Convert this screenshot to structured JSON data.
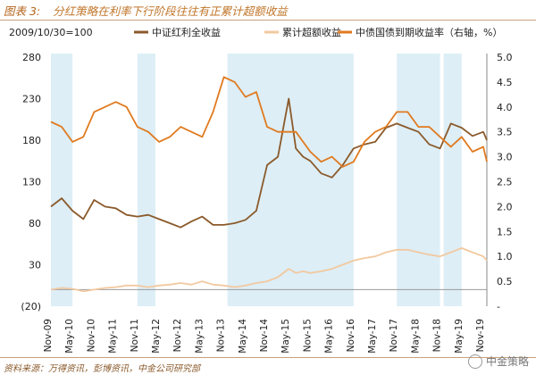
{
  "figure": {
    "label": "图表 3:",
    "title": "分红策略在利率下行阶段往往有正累计超额收益"
  },
  "source": "资料来源：万得资讯，彭博资讯，中金公司研究部",
  "watermark": "中金策略",
  "colors": {
    "dividend": "#8B5A2B",
    "excess": "#F2C9A0",
    "yield": "#E07A1F",
    "shade": "#DDEEF6",
    "axis": "#888888"
  },
  "chart_data": {
    "type": "line",
    "base_label": "2009/10/30=100",
    "legend_position": "top",
    "x_ticks": [
      "Nov-09",
      "May-10",
      "Nov-10",
      "May-11",
      "Nov-11",
      "May-12",
      "Nov-12",
      "May-13",
      "Nov-13",
      "May-14",
      "Nov-14",
      "May-15",
      "Nov-15",
      "May-16",
      "Nov-16",
      "May-17",
      "Nov-17",
      "May-18",
      "Nov-18",
      "May-19",
      "Nov-19"
    ],
    "y_left": {
      "ticks": [
        "(20)",
        "30",
        "80",
        "130",
        "180",
        "230",
        "280"
      ],
      "range": [
        -20,
        280
      ]
    },
    "y_right": {
      "ticks": [
        "-",
        "0.5",
        "1.0",
        "1.5",
        "2.0",
        "2.5",
        "3.0",
        "3.5",
        "4.0",
        "4.5",
        "5.0"
      ],
      "range": [
        0,
        5.0
      ]
    },
    "shaded_periods": [
      [
        "Nov-09",
        "May-10"
      ],
      [
        "Nov-11",
        "Apr-12"
      ],
      [
        "Dec-13",
        "Nov-16"
      ],
      [
        "Nov-17",
        "Nov-18"
      ],
      [
        "Dec-18",
        "May-19"
      ]
    ],
    "series": [
      {
        "name": "中证红利全收益",
        "axis": "left",
        "x": [
          "Nov-09",
          "Feb-10",
          "May-10",
          "Aug-10",
          "Nov-10",
          "Feb-11",
          "May-11",
          "Aug-11",
          "Nov-11",
          "Feb-12",
          "May-12",
          "Aug-12",
          "Nov-12",
          "Feb-13",
          "May-13",
          "Aug-13",
          "Nov-13",
          "Feb-14",
          "May-14",
          "Aug-14",
          "Nov-14",
          "Feb-15",
          "May-15",
          "Jul-15",
          "Sep-15",
          "Nov-15",
          "Feb-16",
          "May-16",
          "Aug-16",
          "Nov-16",
          "Feb-17",
          "May-17",
          "Aug-17",
          "Nov-17",
          "Feb-18",
          "May-18",
          "Aug-18",
          "Nov-18",
          "Feb-19",
          "May-19",
          "Aug-19",
          "Nov-19",
          "Dec-19"
        ],
        "values": [
          100,
          110,
          95,
          85,
          108,
          100,
          98,
          90,
          88,
          90,
          85,
          80,
          75,
          82,
          88,
          78,
          78,
          80,
          84,
          95,
          150,
          160,
          230,
          170,
          160,
          155,
          140,
          135,
          150,
          170,
          175,
          178,
          195,
          200,
          195,
          190,
          175,
          170,
          200,
          195,
          185,
          190,
          180
        ]
      },
      {
        "name": "累计超额收益",
        "axis": "left",
        "x": [
          "Nov-09",
          "Feb-10",
          "May-10",
          "Aug-10",
          "Nov-10",
          "Feb-11",
          "May-11",
          "Aug-11",
          "Nov-11",
          "Feb-12",
          "May-12",
          "Aug-12",
          "Nov-12",
          "Feb-13",
          "May-13",
          "Aug-13",
          "Nov-13",
          "Feb-14",
          "May-14",
          "Aug-14",
          "Nov-14",
          "Feb-15",
          "May-15",
          "Jul-15",
          "Sep-15",
          "Nov-15",
          "Feb-16",
          "May-16",
          "Aug-16",
          "Nov-16",
          "Feb-17",
          "May-17",
          "Aug-17",
          "Nov-17",
          "Feb-18",
          "May-18",
          "Aug-18",
          "Nov-18",
          "Feb-19",
          "May-19",
          "Aug-19",
          "Nov-19",
          "Dec-19"
        ],
        "values": [
          0,
          2,
          1,
          -2,
          0,
          2,
          3,
          5,
          5,
          3,
          5,
          6,
          8,
          6,
          10,
          6,
          5,
          3,
          5,
          8,
          10,
          15,
          25,
          20,
          22,
          20,
          22,
          25,
          30,
          35,
          38,
          40,
          45,
          48,
          48,
          45,
          42,
          40,
          45,
          50,
          45,
          40,
          35
        ]
      },
      {
        "name": "中债国债到期收益率（右轴，%）",
        "axis": "right",
        "x": [
          "Nov-09",
          "Feb-10",
          "May-10",
          "Aug-10",
          "Nov-10",
          "Feb-11",
          "May-11",
          "Aug-11",
          "Nov-11",
          "Feb-12",
          "May-12",
          "Aug-12",
          "Nov-12",
          "Feb-13",
          "May-13",
          "Aug-13",
          "Nov-13",
          "Feb-14",
          "May-14",
          "Aug-14",
          "Nov-14",
          "Feb-15",
          "May-15",
          "Jul-15",
          "Sep-15",
          "Nov-15",
          "Feb-16",
          "May-16",
          "Aug-16",
          "Nov-16",
          "Feb-17",
          "May-17",
          "Aug-17",
          "Nov-17",
          "Feb-18",
          "May-18",
          "Aug-18",
          "Nov-18",
          "Feb-19",
          "May-19",
          "Aug-19",
          "Nov-19",
          "Dec-19"
        ],
        "values": [
          3.7,
          3.6,
          3.3,
          3.4,
          3.9,
          4.0,
          4.1,
          4.0,
          3.6,
          3.5,
          3.3,
          3.4,
          3.6,
          3.5,
          3.4,
          3.9,
          4.6,
          4.5,
          4.2,
          4.3,
          3.6,
          3.5,
          3.5,
          3.5,
          3.3,
          3.1,
          2.9,
          3.0,
          2.8,
          2.9,
          3.3,
          3.5,
          3.6,
          3.9,
          3.9,
          3.6,
          3.6,
          3.4,
          3.2,
          3.4,
          3.1,
          3.2,
          2.9
        ]
      }
    ]
  }
}
